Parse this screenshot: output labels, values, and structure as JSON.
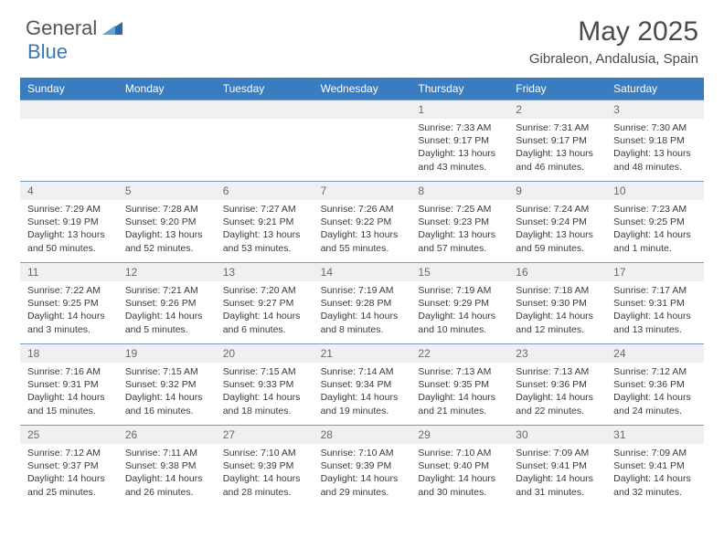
{
  "brand": {
    "general": "General",
    "blue": "Blue"
  },
  "title": "May 2025",
  "location": "Gibraleon, Andalusia, Spain",
  "weekday_bg": "#3a7cc0",
  "weekday_fg": "#ffffff",
  "daynum_bg": "#eef0f2",
  "border_color": "#7a9bbf",
  "weekdays": [
    "Sunday",
    "Monday",
    "Tuesday",
    "Wednesday",
    "Thursday",
    "Friday",
    "Saturday"
  ],
  "weeks": [
    [
      {
        "n": "",
        "sr": "",
        "ss": "",
        "dl": ""
      },
      {
        "n": "",
        "sr": "",
        "ss": "",
        "dl": ""
      },
      {
        "n": "",
        "sr": "",
        "ss": "",
        "dl": ""
      },
      {
        "n": "",
        "sr": "",
        "ss": "",
        "dl": ""
      },
      {
        "n": "1",
        "sr": "Sunrise: 7:33 AM",
        "ss": "Sunset: 9:17 PM",
        "dl": "Daylight: 13 hours and 43 minutes."
      },
      {
        "n": "2",
        "sr": "Sunrise: 7:31 AM",
        "ss": "Sunset: 9:17 PM",
        "dl": "Daylight: 13 hours and 46 minutes."
      },
      {
        "n": "3",
        "sr": "Sunrise: 7:30 AM",
        "ss": "Sunset: 9:18 PM",
        "dl": "Daylight: 13 hours and 48 minutes."
      }
    ],
    [
      {
        "n": "4",
        "sr": "Sunrise: 7:29 AM",
        "ss": "Sunset: 9:19 PM",
        "dl": "Daylight: 13 hours and 50 minutes."
      },
      {
        "n": "5",
        "sr": "Sunrise: 7:28 AM",
        "ss": "Sunset: 9:20 PM",
        "dl": "Daylight: 13 hours and 52 minutes."
      },
      {
        "n": "6",
        "sr": "Sunrise: 7:27 AM",
        "ss": "Sunset: 9:21 PM",
        "dl": "Daylight: 13 hours and 53 minutes."
      },
      {
        "n": "7",
        "sr": "Sunrise: 7:26 AM",
        "ss": "Sunset: 9:22 PM",
        "dl": "Daylight: 13 hours and 55 minutes."
      },
      {
        "n": "8",
        "sr": "Sunrise: 7:25 AM",
        "ss": "Sunset: 9:23 PM",
        "dl": "Daylight: 13 hours and 57 minutes."
      },
      {
        "n": "9",
        "sr": "Sunrise: 7:24 AM",
        "ss": "Sunset: 9:24 PM",
        "dl": "Daylight: 13 hours and 59 minutes."
      },
      {
        "n": "10",
        "sr": "Sunrise: 7:23 AM",
        "ss": "Sunset: 9:25 PM",
        "dl": "Daylight: 14 hours and 1 minute."
      }
    ],
    [
      {
        "n": "11",
        "sr": "Sunrise: 7:22 AM",
        "ss": "Sunset: 9:25 PM",
        "dl": "Daylight: 14 hours and 3 minutes."
      },
      {
        "n": "12",
        "sr": "Sunrise: 7:21 AM",
        "ss": "Sunset: 9:26 PM",
        "dl": "Daylight: 14 hours and 5 minutes."
      },
      {
        "n": "13",
        "sr": "Sunrise: 7:20 AM",
        "ss": "Sunset: 9:27 PM",
        "dl": "Daylight: 14 hours and 6 minutes."
      },
      {
        "n": "14",
        "sr": "Sunrise: 7:19 AM",
        "ss": "Sunset: 9:28 PM",
        "dl": "Daylight: 14 hours and 8 minutes."
      },
      {
        "n": "15",
        "sr": "Sunrise: 7:19 AM",
        "ss": "Sunset: 9:29 PM",
        "dl": "Daylight: 14 hours and 10 minutes."
      },
      {
        "n": "16",
        "sr": "Sunrise: 7:18 AM",
        "ss": "Sunset: 9:30 PM",
        "dl": "Daylight: 14 hours and 12 minutes."
      },
      {
        "n": "17",
        "sr": "Sunrise: 7:17 AM",
        "ss": "Sunset: 9:31 PM",
        "dl": "Daylight: 14 hours and 13 minutes."
      }
    ],
    [
      {
        "n": "18",
        "sr": "Sunrise: 7:16 AM",
        "ss": "Sunset: 9:31 PM",
        "dl": "Daylight: 14 hours and 15 minutes."
      },
      {
        "n": "19",
        "sr": "Sunrise: 7:15 AM",
        "ss": "Sunset: 9:32 PM",
        "dl": "Daylight: 14 hours and 16 minutes."
      },
      {
        "n": "20",
        "sr": "Sunrise: 7:15 AM",
        "ss": "Sunset: 9:33 PM",
        "dl": "Daylight: 14 hours and 18 minutes."
      },
      {
        "n": "21",
        "sr": "Sunrise: 7:14 AM",
        "ss": "Sunset: 9:34 PM",
        "dl": "Daylight: 14 hours and 19 minutes."
      },
      {
        "n": "22",
        "sr": "Sunrise: 7:13 AM",
        "ss": "Sunset: 9:35 PM",
        "dl": "Daylight: 14 hours and 21 minutes."
      },
      {
        "n": "23",
        "sr": "Sunrise: 7:13 AM",
        "ss": "Sunset: 9:36 PM",
        "dl": "Daylight: 14 hours and 22 minutes."
      },
      {
        "n": "24",
        "sr": "Sunrise: 7:12 AM",
        "ss": "Sunset: 9:36 PM",
        "dl": "Daylight: 14 hours and 24 minutes."
      }
    ],
    [
      {
        "n": "25",
        "sr": "Sunrise: 7:12 AM",
        "ss": "Sunset: 9:37 PM",
        "dl": "Daylight: 14 hours and 25 minutes."
      },
      {
        "n": "26",
        "sr": "Sunrise: 7:11 AM",
        "ss": "Sunset: 9:38 PM",
        "dl": "Daylight: 14 hours and 26 minutes."
      },
      {
        "n": "27",
        "sr": "Sunrise: 7:10 AM",
        "ss": "Sunset: 9:39 PM",
        "dl": "Daylight: 14 hours and 28 minutes."
      },
      {
        "n": "28",
        "sr": "Sunrise: 7:10 AM",
        "ss": "Sunset: 9:39 PM",
        "dl": "Daylight: 14 hours and 29 minutes."
      },
      {
        "n": "29",
        "sr": "Sunrise: 7:10 AM",
        "ss": "Sunset: 9:40 PM",
        "dl": "Daylight: 14 hours and 30 minutes."
      },
      {
        "n": "30",
        "sr": "Sunrise: 7:09 AM",
        "ss": "Sunset: 9:41 PM",
        "dl": "Daylight: 14 hours and 31 minutes."
      },
      {
        "n": "31",
        "sr": "Sunrise: 7:09 AM",
        "ss": "Sunset: 9:41 PM",
        "dl": "Daylight: 14 hours and 32 minutes."
      }
    ]
  ]
}
